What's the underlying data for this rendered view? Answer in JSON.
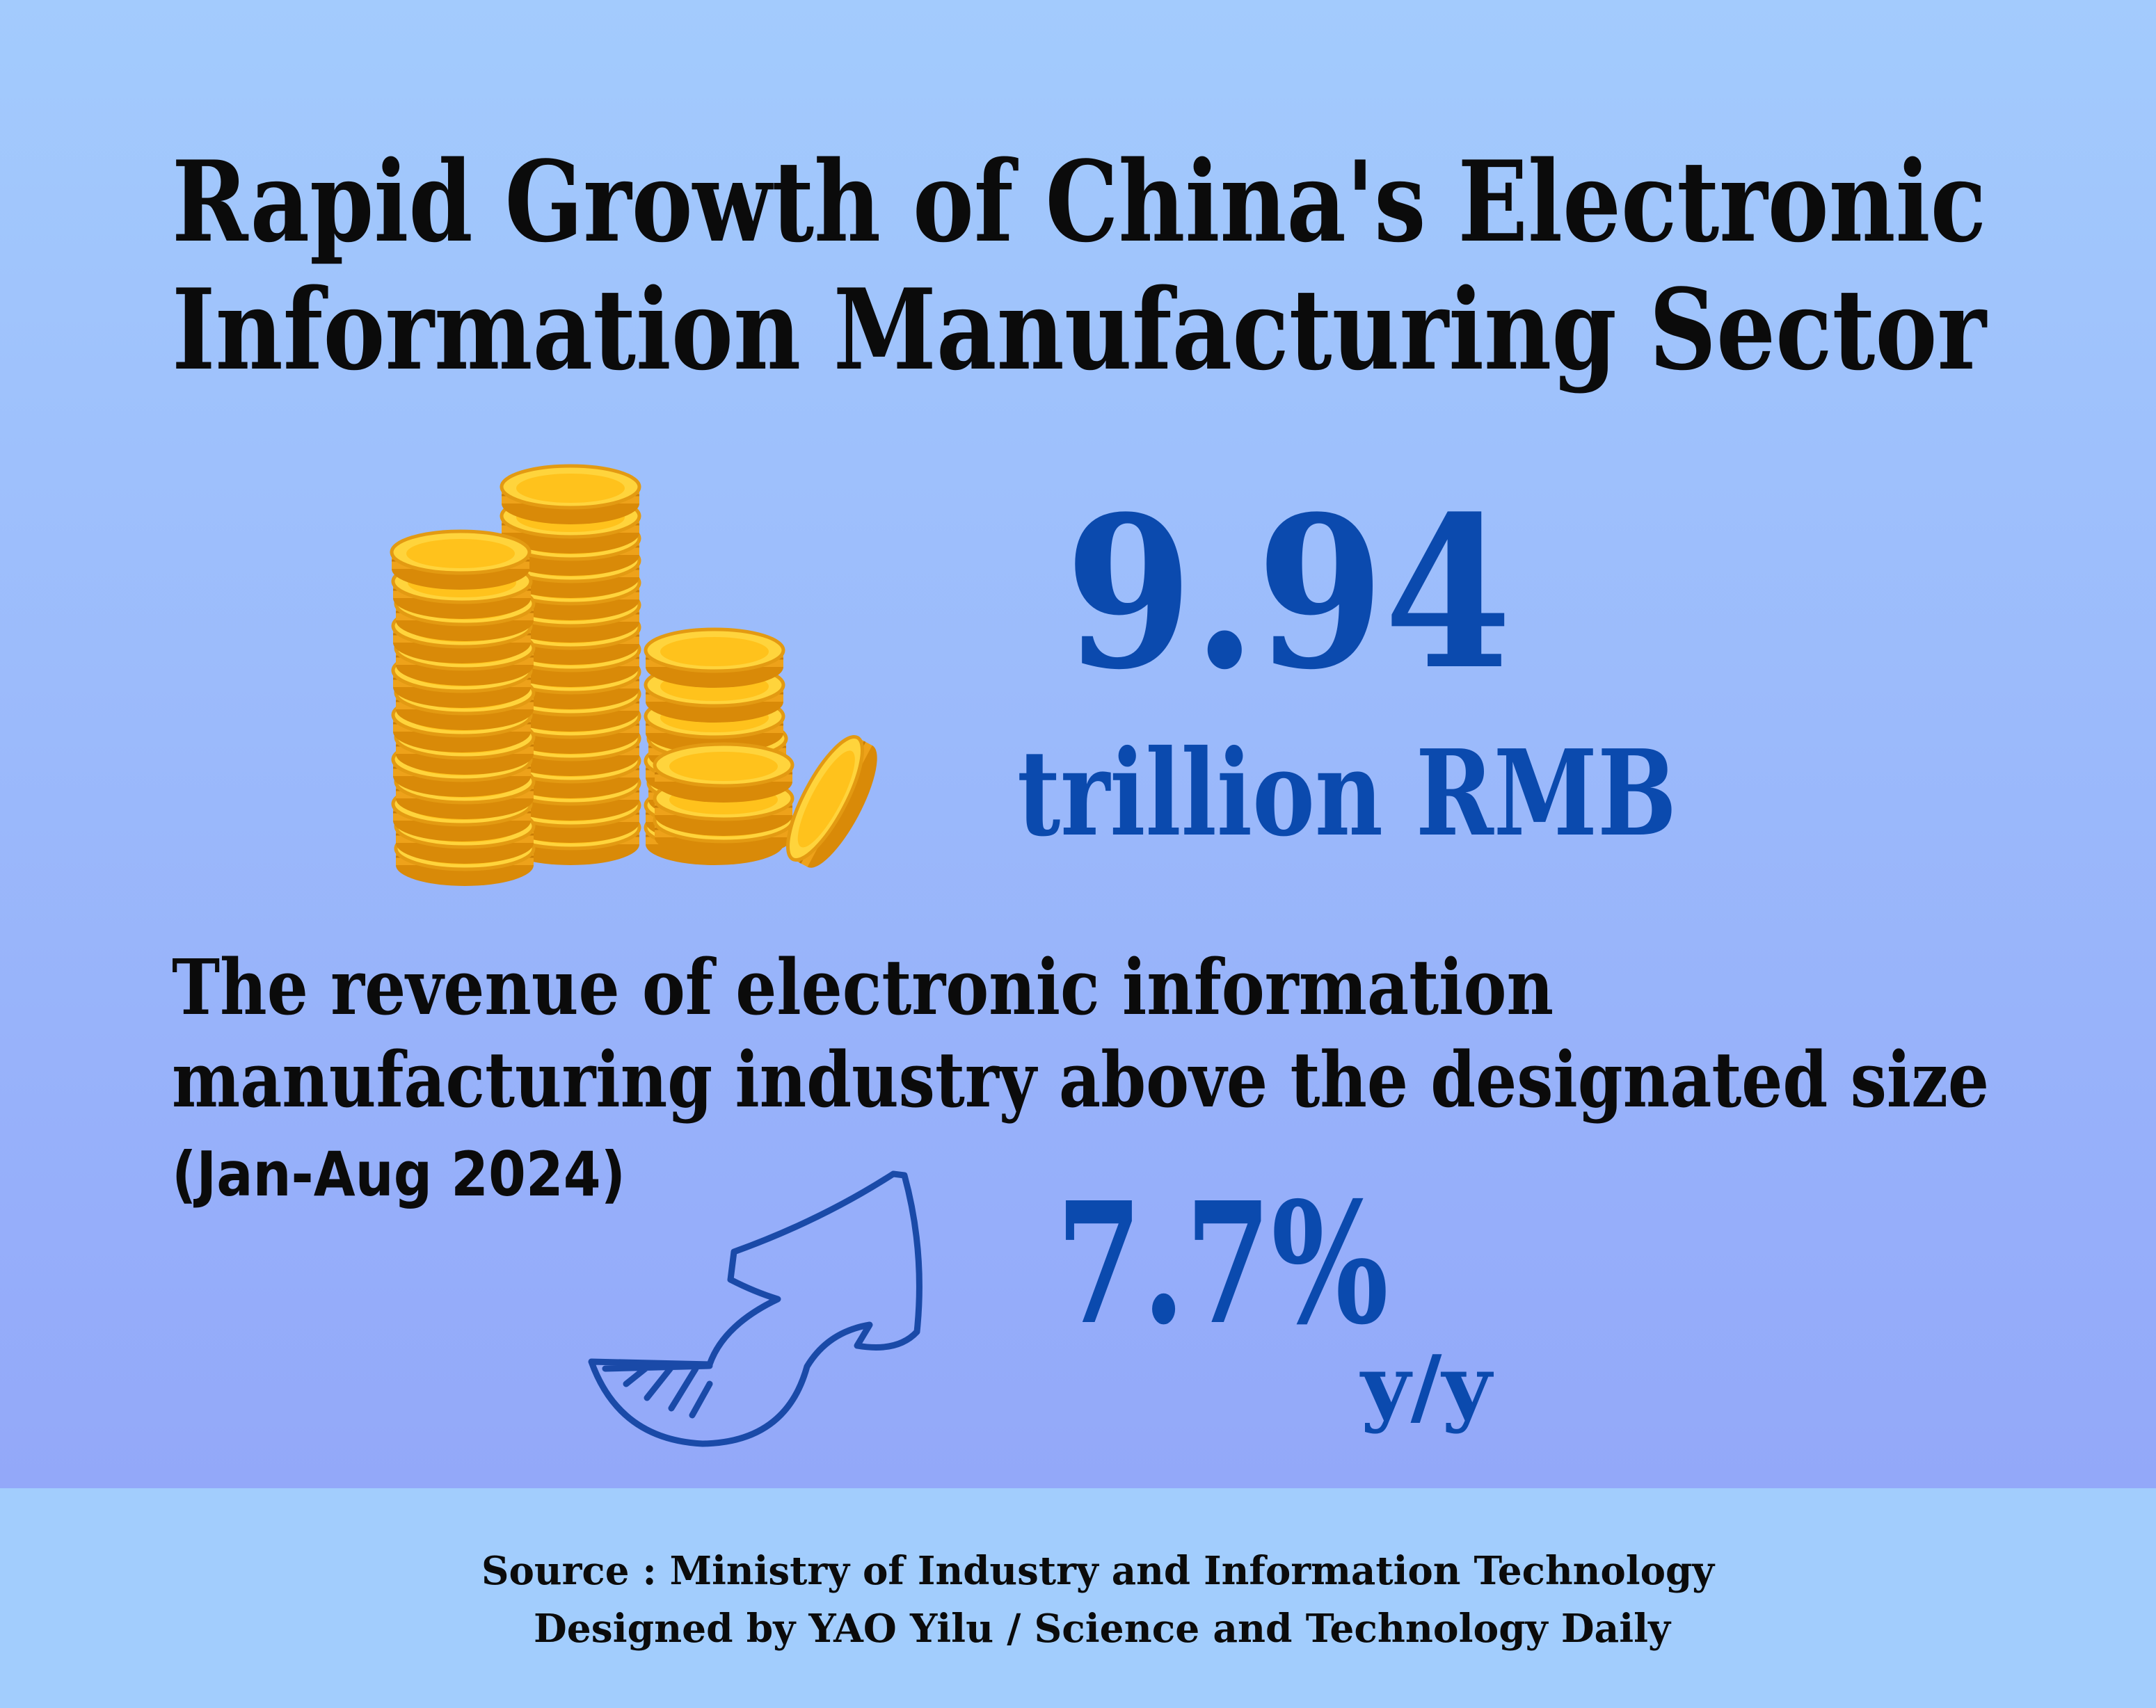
{
  "title": {
    "lines": [
      "Rapid Growth of China's Electronic",
      "Information Manufacturing Sector"
    ]
  },
  "headline": {
    "value": "9.94",
    "unit": "trillion RMB"
  },
  "description": {
    "lines": [
      "The revenue of electronic information",
      "manufacturing industry above the designated size"
    ],
    "period": "(Jan-Aug 2024)"
  },
  "growth": {
    "value": "7.7%",
    "unit": "y/y"
  },
  "footer": {
    "source": "Source : Ministry of Industry and Information Technology",
    "credit": "Designed by YAO Yilu / Science and Technology Daily"
  }
}
